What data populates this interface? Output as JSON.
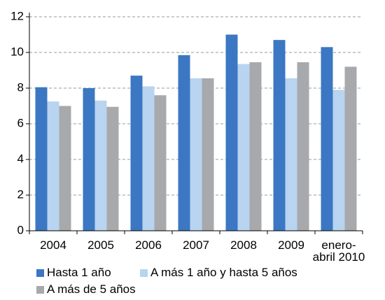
{
  "chart_data": {
    "type": "bar",
    "categories": [
      "2004",
      "2005",
      "2006",
      "2007",
      "2008",
      "2009",
      "enero-abril 2010"
    ],
    "series": [
      {
        "name": "Hasta 1 año",
        "color": "#3b77c2",
        "values": [
          8.05,
          8.0,
          8.7,
          9.85,
          11.0,
          10.7,
          10.3
        ]
      },
      {
        "name": "A más 1 año y hasta 5 años",
        "color": "#b8d4f0",
        "values": [
          7.25,
          7.3,
          8.1,
          8.55,
          9.35,
          8.55,
          7.9
        ]
      },
      {
        "name": "A más de 5 años",
        "color": "#a7a9ac",
        "values": [
          7.0,
          6.95,
          7.6,
          8.55,
          9.45,
          9.45,
          9.2
        ]
      }
    ],
    "ylim": [
      0,
      12
    ],
    "yticks": [
      0,
      2,
      4,
      6,
      8,
      10,
      12
    ],
    "grid": true
  }
}
